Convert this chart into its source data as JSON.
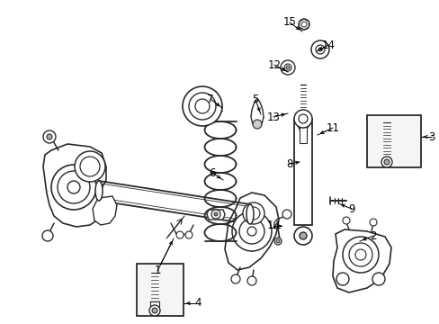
{
  "bg_color": "#ffffff",
  "line_color": "#2a2a2a",
  "figsize": [
    4.89,
    3.6
  ],
  "dpi": 100,
  "labels": {
    "1": [
      175,
      300,
      195,
      267
    ],
    "2": [
      415,
      262,
      400,
      270
    ],
    "3": [
      480,
      152,
      466,
      152
    ],
    "4": [
      220,
      335,
      205,
      335
    ],
    "5": [
      284,
      112,
      291,
      128
    ],
    "6": [
      236,
      193,
      249,
      200
    ],
    "7": [
      234,
      111,
      247,
      120
    ],
    "8": [
      322,
      182,
      333,
      182
    ],
    "9": [
      390,
      232,
      375,
      226
    ],
    "10": [
      305,
      252,
      315,
      252
    ],
    "11": [
      370,
      142,
      353,
      150
    ],
    "12": [
      305,
      72,
      318,
      82
    ],
    "13": [
      305,
      130,
      318,
      122
    ],
    "14": [
      365,
      50,
      350,
      57
    ],
    "15": [
      323,
      25,
      335,
      37
    ]
  }
}
